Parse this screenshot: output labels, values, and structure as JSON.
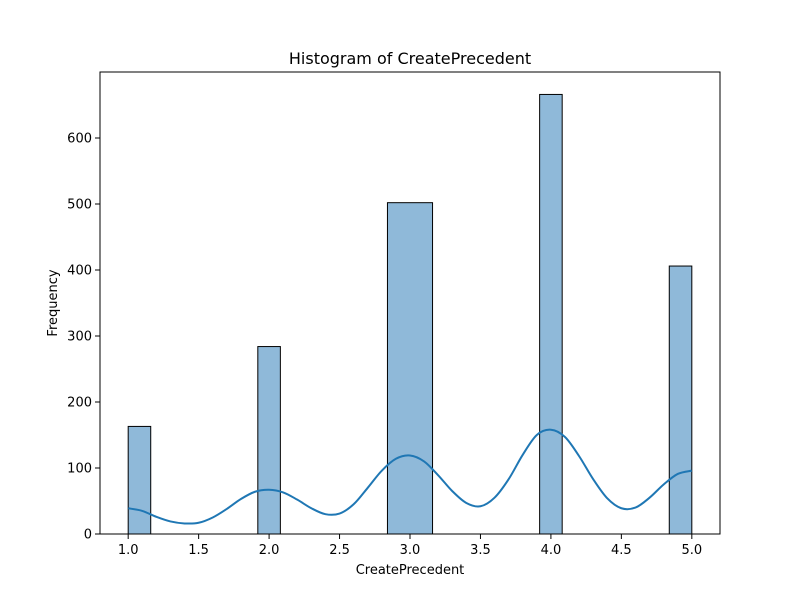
{
  "chart_data": {
    "type": "bar",
    "title": "Histogram of CreatePrecedent",
    "xlabel": "CreatePrecedent",
    "ylabel": "Frequency",
    "xlim": [
      0.8,
      5.2
    ],
    "ylim": [
      0,
      700
    ],
    "x_ticks": [
      "1.0",
      "1.5",
      "2.0",
      "2.5",
      "3.0",
      "3.5",
      "4.0",
      "4.5",
      "5.0"
    ],
    "y_ticks": [
      "0",
      "100",
      "200",
      "300",
      "400",
      "500",
      "600"
    ],
    "bin_width": 0.16,
    "bars": [
      {
        "x_start": 1.0,
        "x_end": 1.16,
        "value": 163
      },
      {
        "x_start": 1.92,
        "x_end": 2.08,
        "value": 284
      },
      {
        "x_start": 2.84,
        "x_end": 3.16,
        "value": 502
      },
      {
        "x_start": 3.92,
        "x_end": 4.08,
        "value": 666
      },
      {
        "x_start": 4.84,
        "x_end": 5.0,
        "value": 406
      }
    ],
    "kde_line": {
      "color": "#1f77b4",
      "points": [
        [
          1.0,
          39
        ],
        [
          1.1,
          35
        ],
        [
          1.2,
          26
        ],
        [
          1.3,
          19
        ],
        [
          1.4,
          16
        ],
        [
          1.5,
          17
        ],
        [
          1.6,
          25
        ],
        [
          1.7,
          38
        ],
        [
          1.8,
          53
        ],
        [
          1.9,
          64
        ],
        [
          2.0,
          67
        ],
        [
          2.1,
          63
        ],
        [
          2.2,
          52
        ],
        [
          2.3,
          39
        ],
        [
          2.4,
          30
        ],
        [
          2.5,
          31
        ],
        [
          2.6,
          45
        ],
        [
          2.7,
          70
        ],
        [
          2.8,
          96
        ],
        [
          2.9,
          114
        ],
        [
          3.0,
          119
        ],
        [
          3.1,
          110
        ],
        [
          3.2,
          89
        ],
        [
          3.3,
          65
        ],
        [
          3.4,
          47
        ],
        [
          3.5,
          42
        ],
        [
          3.6,
          55
        ],
        [
          3.7,
          83
        ],
        [
          3.8,
          120
        ],
        [
          3.9,
          150
        ],
        [
          4.0,
          158
        ],
        [
          4.1,
          147
        ],
        [
          4.2,
          118
        ],
        [
          4.3,
          83
        ],
        [
          4.4,
          54
        ],
        [
          4.5,
          39
        ],
        [
          4.6,
          40
        ],
        [
          4.7,
          55
        ],
        [
          4.8,
          75
        ],
        [
          4.9,
          91
        ],
        [
          5.0,
          96
        ]
      ]
    },
    "bar_color": "#8fb9d9",
    "bar_edge_color": "#000000",
    "grid": false
  }
}
